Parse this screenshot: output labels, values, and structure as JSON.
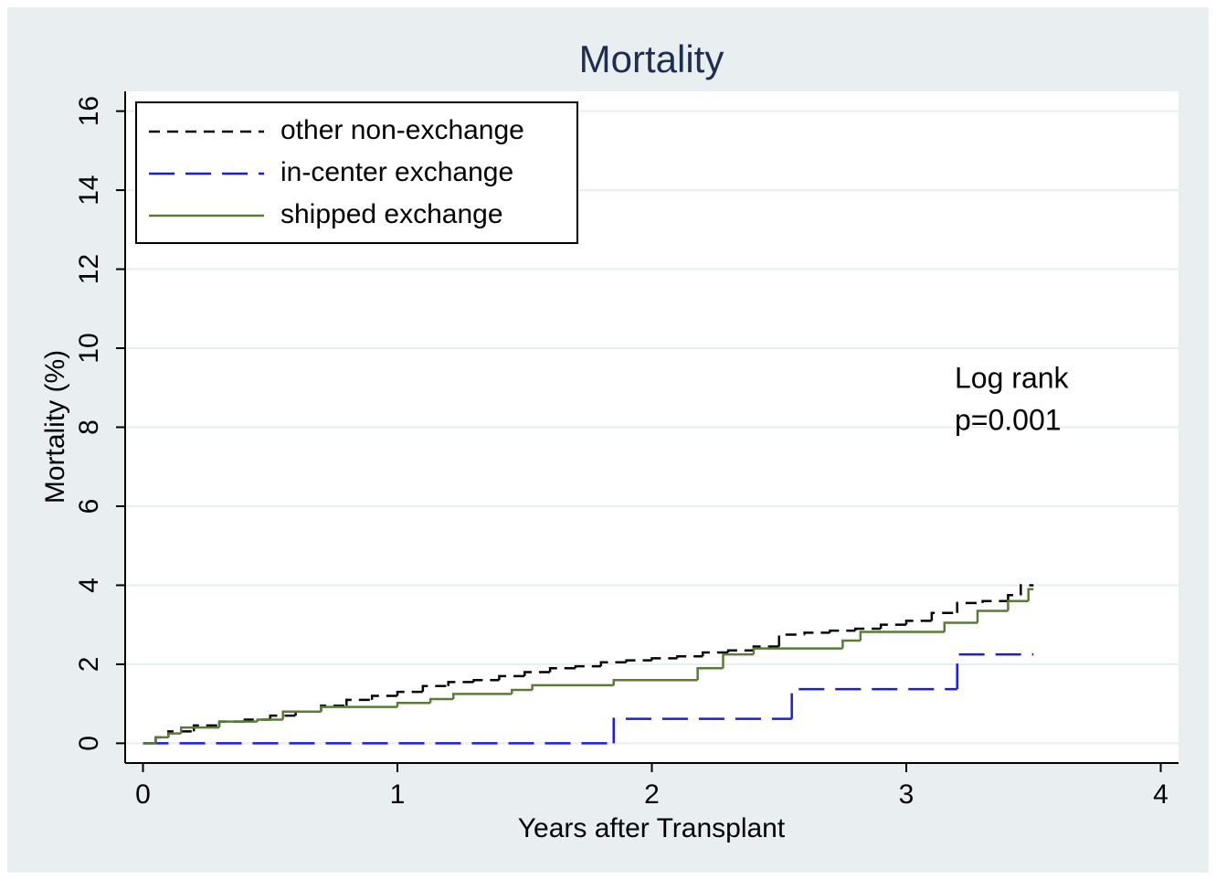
{
  "chart_data": {
    "type": "step",
    "title": "Mortality",
    "x_label": "Years after Transplant",
    "y_label": "Mortality (%)",
    "annotation": [
      "Log rank",
      "p=0.001"
    ],
    "xlim": [
      -0.07,
      4.07
    ],
    "ylim": [
      -0.5,
      16.5
    ],
    "xticks": [
      0,
      1,
      2,
      3,
      4
    ],
    "yticks": [
      0,
      2,
      4,
      6,
      8,
      10,
      12,
      14,
      16
    ],
    "grid": true,
    "legend": "top-left",
    "series": [
      {
        "name": "other non-exchange",
        "color": "#000000",
        "dash": "12 8",
        "x": [
          0,
          0.05,
          0.1,
          0.2,
          0.3,
          0.4,
          0.5,
          0.6,
          0.7,
          0.8,
          0.9,
          1.0,
          1.1,
          1.2,
          1.3,
          1.4,
          1.5,
          1.6,
          1.7,
          1.8,
          1.9,
          2.0,
          2.1,
          2.2,
          2.3,
          2.4,
          2.5,
          2.6,
          2.7,
          2.8,
          2.9,
          3.0,
          3.1,
          3.2,
          3.3,
          3.4,
          3.45,
          3.5
        ],
        "values": [
          0,
          0.15,
          0.3,
          0.45,
          0.55,
          0.6,
          0.7,
          0.8,
          0.95,
          1.1,
          1.2,
          1.3,
          1.45,
          1.55,
          1.6,
          1.7,
          1.8,
          1.9,
          1.95,
          2.05,
          2.1,
          2.15,
          2.2,
          2.3,
          2.35,
          2.45,
          2.75,
          2.8,
          2.85,
          2.9,
          3.0,
          3.1,
          3.3,
          3.55,
          3.6,
          3.75,
          4.0,
          4.0
        ]
      },
      {
        "name": "in-center exchange",
        "color": "#1a1aee",
        "dash": "28 12",
        "x": [
          0,
          1.85,
          2.55,
          3.2,
          3.5
        ],
        "values": [
          0,
          0.62,
          1.37,
          2.25,
          2.25
        ]
      },
      {
        "name": "shipped exchange",
        "color": "#5b7a3a",
        "dash": "none",
        "x": [
          0,
          0.05,
          0.1,
          0.15,
          0.3,
          0.45,
          0.55,
          0.7,
          1.0,
          1.13,
          1.22,
          1.45,
          1.53,
          1.85,
          2.18,
          2.28,
          2.4,
          2.75,
          2.82,
          3.15,
          3.28,
          3.4,
          3.48,
          3.5
        ],
        "values": [
          0,
          0.15,
          0.25,
          0.4,
          0.55,
          0.6,
          0.8,
          0.92,
          1.02,
          1.12,
          1.25,
          1.35,
          1.47,
          1.6,
          1.9,
          2.25,
          2.4,
          2.6,
          2.82,
          3.05,
          3.35,
          3.6,
          3.9,
          3.9
        ]
      }
    ]
  }
}
